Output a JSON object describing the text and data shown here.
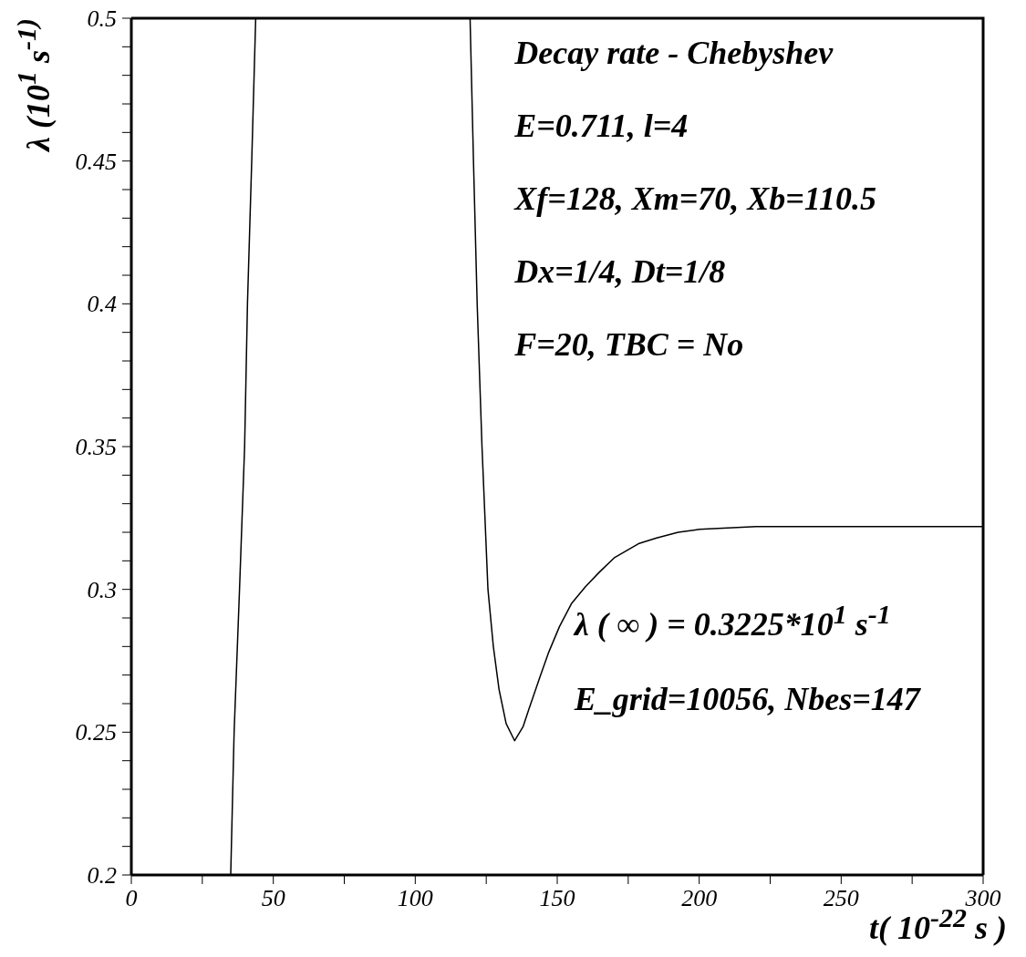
{
  "chart_data": {
    "type": "line",
    "title": "Decay rate - Chebyshev",
    "xlabel": "t( 10$^{-22}$ s )",
    "ylabel": "λ (10$^{1}$ s$^{-1)}$",
    "annotations": [
      "E=0.711, l=4",
      "Xf=128, Xm=70, Xb=110.5",
      "Dx=1/4, Dt=1/8",
      "F=20, TBC = No",
      "λ ( ∞ ) = 0.3225*10$^{1}$ s$^{-1}$",
      "E_grid=10056, Nbes=147"
    ],
    "xlim": [
      0,
      300
    ],
    "xticks": [
      0,
      {
        "value": 25,
        "label": null
      },
      50,
      {
        "value": 75,
        "label": null
      },
      100,
      {
        "value": 125,
        "label": null
      },
      150,
      {
        "value": 175,
        "label": null
      },
      200,
      {
        "value": 225,
        "label": null
      },
      250,
      {
        "value": 275,
        "label": null
      },
      300
    ],
    "ylim": [
      0.2,
      0.5
    ],
    "yticks": [
      0.2,
      {
        "value": 0.21,
        "label": null
      },
      {
        "value": 0.22,
        "label": null
      },
      {
        "value": 0.23,
        "label": null
      },
      {
        "value": 0.24,
        "label": null
      },
      0.25,
      {
        "value": 0.26,
        "label": null
      },
      {
        "value": 0.27,
        "label": null
      },
      {
        "value": 0.28,
        "label": null
      },
      {
        "value": 0.29,
        "label": null
      },
      0.3,
      {
        "value": 0.31,
        "label": null
      },
      {
        "value": 0.32,
        "label": null
      },
      {
        "value": 0.33,
        "label": null
      },
      {
        "value": 0.34,
        "label": null
      },
      0.35,
      {
        "value": 0.36,
        "label": null
      },
      {
        "value": 0.37,
        "label": null
      },
      {
        "value": 0.38,
        "label": null
      },
      {
        "value": 0.39,
        "label": null
      },
      0.4,
      {
        "value": 0.41,
        "label": null
      },
      {
        "value": 0.42,
        "label": null
      },
      {
        "value": 0.43,
        "label": null
      },
      {
        "value": 0.44,
        "label": null
      },
      0.45,
      {
        "value": 0.46,
        "label": null
      },
      {
        "value": 0.47,
        "label": null
      },
      {
        "value": 0.48,
        "label": null
      },
      {
        "value": 0.49,
        "label": null
      },
      0.5
    ],
    "series": [
      {
        "color": "#000000",
        "x": [
          35,
          36.2,
          38.1,
          39.9,
          40.9,
          42.4,
          43.8
        ],
        "values": [
          0.2,
          0.25,
          0.3,
          0.35,
          0.4,
          0.45,
          0.5
        ]
      },
      {
        "color": "#000000",
        "x": [
          119.3,
          120.5,
          121.8,
          123.5,
          125.6,
          127.5,
          129.5,
          132,
          135,
          138,
          140,
          143.8,
          147,
          150.8,
          155,
          160,
          164.8,
          170,
          178.6,
          185,
          192.6,
          200,
          220,
          250,
          280,
          300
        ],
        "values": [
          0.5,
          0.45,
          0.4,
          0.35,
          0.3,
          0.28,
          0.265,
          0.253,
          0.247,
          0.252,
          0.258,
          0.269,
          0.278,
          0.287,
          0.295,
          0.301,
          0.306,
          0.311,
          0.316,
          0.318,
          0.32,
          0.321,
          0.322,
          0.322,
          0.322,
          0.322
        ]
      }
    ]
  }
}
